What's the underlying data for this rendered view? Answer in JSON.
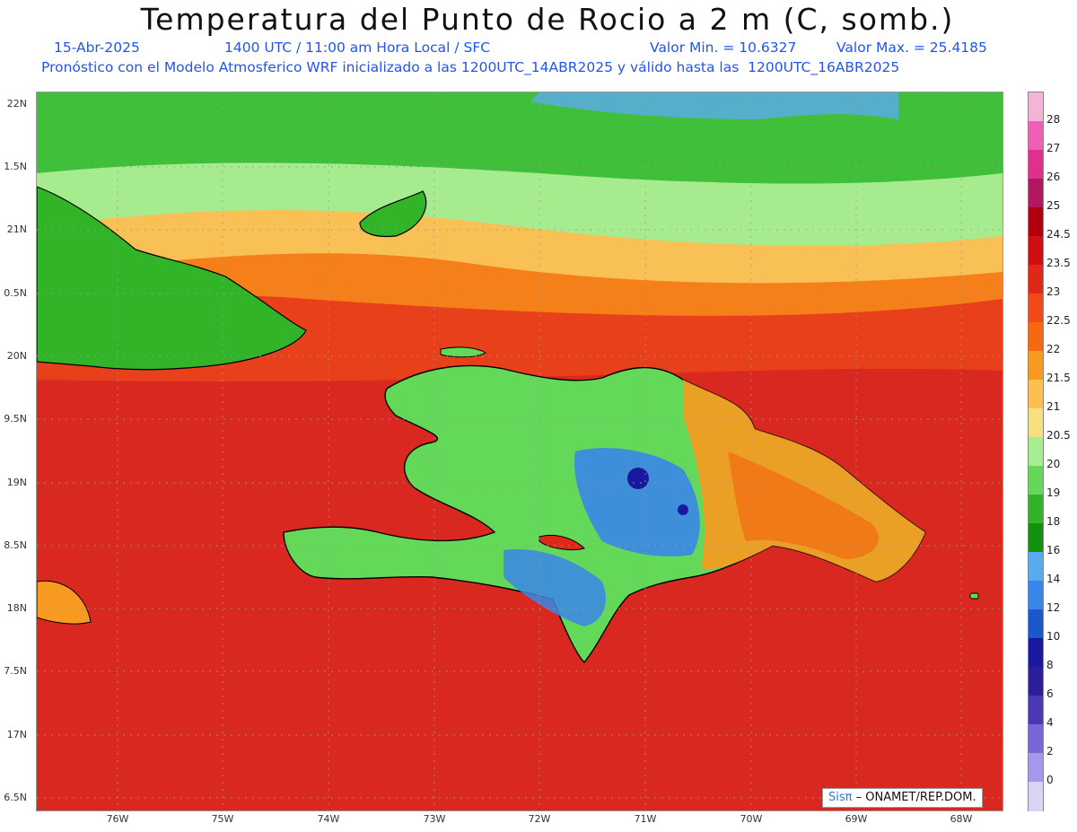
{
  "header": {
    "title": "Temperatura del Punto de Rocio a 2 m (C, somb.)",
    "date": "15-Abr-2025",
    "time": "1400 UTC / 11:00 am Hora Local / SFC",
    "min_value": "Valor Min. = 10.6327",
    "max_value": "Valor Max. = 25.4185",
    "subtitle": "Pronóstico con el Modelo Atmosferico WRF inicializado a las 1200UTC_14ABR2025 y válido hasta las  1200UTC_16ABR2025"
  },
  "axes": {
    "lat_labels": [
      "22N",
      "1.5N",
      "21N",
      "0.5N",
      "20N",
      "9.5N",
      "19N",
      "8.5N",
      "18N",
      "7.5N",
      "17N",
      "6.5N"
    ],
    "lon_labels": [
      "76W",
      "75W",
      "74W",
      "73W",
      "72W",
      "71W",
      "70W",
      "69W",
      "68W"
    ]
  },
  "colorbar": {
    "labels": [
      "28",
      "27",
      "26",
      "25",
      "24.5",
      "23.5",
      "23",
      "22.5",
      "22",
      "21.5",
      "21",
      "20.5",
      "20",
      "19",
      "18",
      "16",
      "14",
      "12",
      "10",
      "8",
      "6",
      "4",
      "2",
      "0"
    ],
    "colors": [
      "#f4b4d8",
      "#ee60b8",
      "#e0308e",
      "#b01860",
      "#b00010",
      "#d01010",
      "#e02818",
      "#f04a18",
      "#f56a10",
      "#f89a20",
      "#fbc050",
      "#f8e080",
      "#a8ec90",
      "#64d858",
      "#32b428",
      "#129010",
      "#5aaaf0",
      "#3a86e8",
      "#1c58cc",
      "#1a18a0",
      "#2c1e9a",
      "#4a38b4",
      "#7a66d8",
      "#a898ec",
      "#d8d4f6"
    ]
  },
  "credit": {
    "brand": "Sisπ",
    "text": " – ONAMET/REP.DOM."
  }
}
